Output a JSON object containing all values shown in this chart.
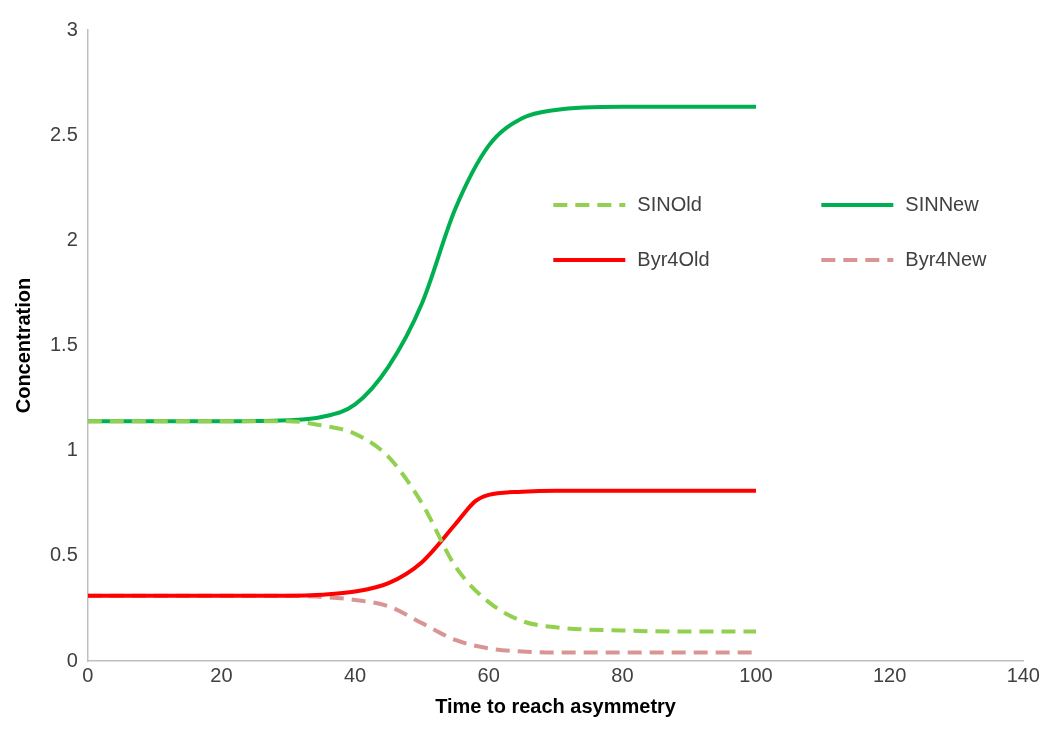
{
  "chart_data": {
    "type": "line",
    "xlabel": "Time to reach asymmetry",
    "ylabel": "Concentration",
    "xlim": [
      0,
      140
    ],
    "xticks": [
      0,
      20,
      40,
      60,
      80,
      100,
      120,
      140
    ],
    "ylim": [
      0,
      3
    ],
    "yticks": [
      0,
      0.5,
      1,
      1.5,
      2,
      2.5,
      3
    ],
    "grid": false,
    "legend": "top right",
    "marker": "none",
    "series": [
      {
        "name": "SINOld",
        "color": "#92d050",
        "line_style": "dashed",
        "x": [
          0,
          10,
          20,
          30,
          35,
          40,
          45,
          50,
          55,
          60,
          65,
          70,
          80,
          90,
          100
        ],
        "values": [
          1.14,
          1.14,
          1.14,
          1.14,
          1.12,
          1.08,
          0.97,
          0.75,
          0.45,
          0.28,
          0.19,
          0.16,
          0.145,
          0.14,
          0.14
        ]
      },
      {
        "name": "SINNew",
        "color": "#00b050",
        "line_style": "solid",
        "x": [
          0,
          10,
          20,
          30,
          35,
          40,
          45,
          50,
          55,
          60,
          65,
          70,
          80,
          90,
          100
        ],
        "values": [
          1.14,
          1.14,
          1.14,
          1.145,
          1.16,
          1.22,
          1.4,
          1.7,
          2.15,
          2.45,
          2.58,
          2.62,
          2.635,
          2.635,
          2.635
        ]
      },
      {
        "name": "Byr4Old",
        "color": "#ff0000",
        "line_style": "solid",
        "x": [
          0,
          10,
          20,
          30,
          35,
          40,
          45,
          50,
          55,
          58,
          60,
          65,
          70,
          80,
          100
        ],
        "values": [
          0.31,
          0.31,
          0.31,
          0.31,
          0.315,
          0.33,
          0.37,
          0.47,
          0.65,
          0.76,
          0.79,
          0.805,
          0.81,
          0.81,
          0.81
        ]
      },
      {
        "name": "Byr4New",
        "color": "#d99594",
        "line_style": "dashed",
        "x": [
          0,
          10,
          20,
          30,
          35,
          40,
          45,
          50,
          55,
          60,
          65,
          70,
          80,
          90,
          100
        ],
        "values": [
          0.31,
          0.31,
          0.31,
          0.31,
          0.305,
          0.29,
          0.26,
          0.18,
          0.1,
          0.06,
          0.045,
          0.04,
          0.04,
          0.04,
          0.04
        ]
      }
    ]
  }
}
